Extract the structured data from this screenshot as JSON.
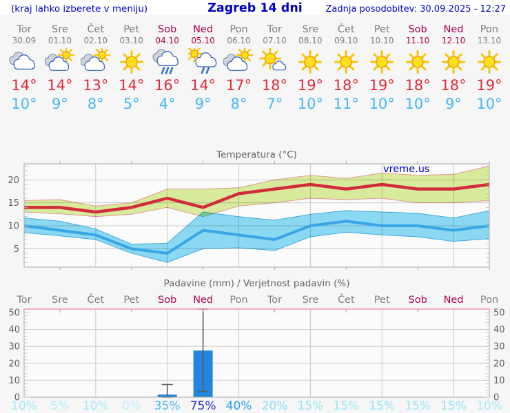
{
  "header": {
    "menu_hint": "(kraj lahko izberete v meniju)",
    "title": "Zagreb 14 dni",
    "updated": "Zadnja posodobitev: 30.09.2025 - 12:27"
  },
  "watermark": "vreme.us",
  "colors": {
    "accent_blue": "#0000cc",
    "weekday_label": "#7f7f7f",
    "weekend_label": "#b2014e",
    "tmax_text": "#e22b3a",
    "tmin_text": "#47b7f3",
    "tick_label": "#5f5f5f",
    "chart_title": "#646464",
    "grid": "#c9c9c9",
    "spine": "#a9a9a9",
    "pink_spine": "#f285a5",
    "plot_bg": "#fbfbfb",
    "bar_blue": "#2386dd",
    "whisker": "#5a5a5a"
  },
  "strip": {
    "days": [
      {
        "name": "Tor",
        "date": "30.09",
        "weekend": false,
        "icon": "cloudy",
        "tmax": "14°",
        "tmin": "10°"
      },
      {
        "name": "Sre",
        "date": "01.10",
        "weekend": false,
        "icon": "partly",
        "tmax": "14°",
        "tmin": "9°"
      },
      {
        "name": "Čet",
        "date": "02.10",
        "weekend": false,
        "icon": "partly",
        "tmax": "13°",
        "tmin": "8°"
      },
      {
        "name": "Pet",
        "date": "03.10",
        "weekend": false,
        "icon": "sunny",
        "tmax": "14°",
        "tmin": "5°"
      },
      {
        "name": "Sob",
        "date": "04.10",
        "weekend": true,
        "icon": "rain",
        "tmax": "16°",
        "tmin": "4°"
      },
      {
        "name": "Ned",
        "date": "05.10",
        "weekend": true,
        "icon": "sun-rain",
        "tmax": "14°",
        "tmin": "9°"
      },
      {
        "name": "Pon",
        "date": "06.10",
        "weekend": false,
        "icon": "partly",
        "tmax": "17°",
        "tmin": "8°"
      },
      {
        "name": "Tor",
        "date": "07.10",
        "weekend": false,
        "icon": "mostly-sunny",
        "tmax": "18°",
        "tmin": "7°"
      },
      {
        "name": "Sre",
        "date": "08.10",
        "weekend": false,
        "icon": "sunny",
        "tmax": "19°",
        "tmin": "10°"
      },
      {
        "name": "Čet",
        "date": "09.10",
        "weekend": false,
        "icon": "sunny",
        "tmax": "18°",
        "tmin": "11°"
      },
      {
        "name": "Pet",
        "date": "10.10",
        "weekend": false,
        "icon": "sunny",
        "tmax": "19°",
        "tmin": "10°"
      },
      {
        "name": "Sob",
        "date": "11.10",
        "weekend": true,
        "icon": "sunny",
        "tmax": "18°",
        "tmin": "10°"
      },
      {
        "name": "Ned",
        "date": "12.10",
        "weekend": true,
        "icon": "sunny",
        "tmax": "18°",
        "tmin": "9°"
      },
      {
        "name": "Pon",
        "date": "13.10",
        "weekend": false,
        "icon": "sunny",
        "tmax": "19°",
        "tmin": "10°"
      }
    ]
  },
  "chart_data": [
    {
      "type": "line",
      "title": "Temperatura (°C)",
      "categories": [
        "Tor",
        "Sre",
        "Čet",
        "Pet",
        "Sob",
        "Ned",
        "Pon",
        "Tor",
        "Sre",
        "Čet",
        "Pet",
        "Sob",
        "Ned",
        "Pon"
      ],
      "ylim": [
        1,
        23.5
      ],
      "yticks": [
        5,
        10,
        15,
        20
      ],
      "grid_v_at": [
        2,
        4,
        6,
        8,
        10,
        12
      ],
      "tick_x_at": [
        1,
        3,
        5,
        7,
        9,
        11,
        13
      ],
      "legend_position": "none",
      "series": [
        {
          "name": "max temperature",
          "color": "#d22c3c",
          "band_color": "#dcee9e",
          "band_edge": "#e89191",
          "values": [
            14,
            14,
            13,
            14,
            16,
            14,
            17,
            18,
            19,
            18,
            19,
            18,
            18,
            19
          ],
          "upper": [
            15.5,
            15.7,
            14.3,
            15.0,
            18.0,
            18.0,
            18.3,
            20.0,
            21.0,
            20.3,
            21.5,
            21.0,
            21.2,
            23.0
          ],
          "lower": [
            13.0,
            12.6,
            12.0,
            12.5,
            14.0,
            12.0,
            14.3,
            15.0,
            16.0,
            15.7,
            16.0,
            15.0,
            15.0,
            15.5
          ]
        },
        {
          "name": "min temperature",
          "color": "#39a5e6",
          "band_color": "#8cdcf5",
          "band_edge": "#3aa7dc",
          "values": [
            10,
            9,
            8,
            5,
            4,
            9,
            8,
            7,
            10,
            11,
            10,
            10,
            9,
            10
          ],
          "upper": [
            11.7,
            11.0,
            9.3,
            6.0,
            6.2,
            13.0,
            12.0,
            11.2,
            12.5,
            13.3,
            13.0,
            12.7,
            11.7,
            13.3
          ],
          "lower": [
            8.5,
            7.8,
            7.0,
            4.0,
            2.0,
            5.0,
            5.2,
            4.6,
            7.6,
            8.6,
            8.0,
            7.6,
            6.6,
            7.2
          ]
        }
      ]
    },
    {
      "type": "bar",
      "title": "Padavine (mm) / Verjetnost padavin (%)",
      "categories": [
        "Tor",
        "Sre",
        "Čet",
        "Pet",
        "Sob",
        "Ned",
        "Pon",
        "Tor",
        "Sre",
        "Čet",
        "Pet",
        "Sob",
        "Ned",
        "Pon"
      ],
      "weekend_mask": [
        false,
        false,
        false,
        false,
        true,
        true,
        false,
        false,
        false,
        false,
        false,
        true,
        true,
        false
      ],
      "ylim": [
        0,
        52
      ],
      "yticks": [
        0,
        10,
        20,
        30,
        40,
        50
      ],
      "grid_v_at": [
        2,
        4,
        6,
        8,
        10,
        12
      ],
      "tick_top_at": [
        1,
        3,
        5,
        7,
        9,
        11,
        13
      ],
      "values_mm": [
        0,
        0,
        0,
        0,
        1.5,
        27.5,
        0,
        0,
        0,
        0,
        0,
        0,
        0,
        0
      ],
      "error_bars": [
        {
          "index": 4,
          "low": 0,
          "high": 7.5
        },
        {
          "index": 5,
          "low": 3.5,
          "high": 52
        }
      ],
      "bar_color": "#2386dd",
      "probabilities_pct": [
        10,
        5,
        10,
        0,
        35,
        75,
        40,
        20,
        15,
        15,
        15,
        15,
        15,
        10
      ],
      "prob_colors": [
        "#a6e9f8",
        "#b2ecf9",
        "#a6e9f8",
        "#bdeffa",
        "#4cb9ef",
        "#2134ce",
        "#2aa2e8",
        "#85dff5",
        "#98e5f7",
        "#98e5f7",
        "#98e5f7",
        "#98e5f7",
        "#98e5f7",
        "#a6e9f8"
      ]
    }
  ]
}
